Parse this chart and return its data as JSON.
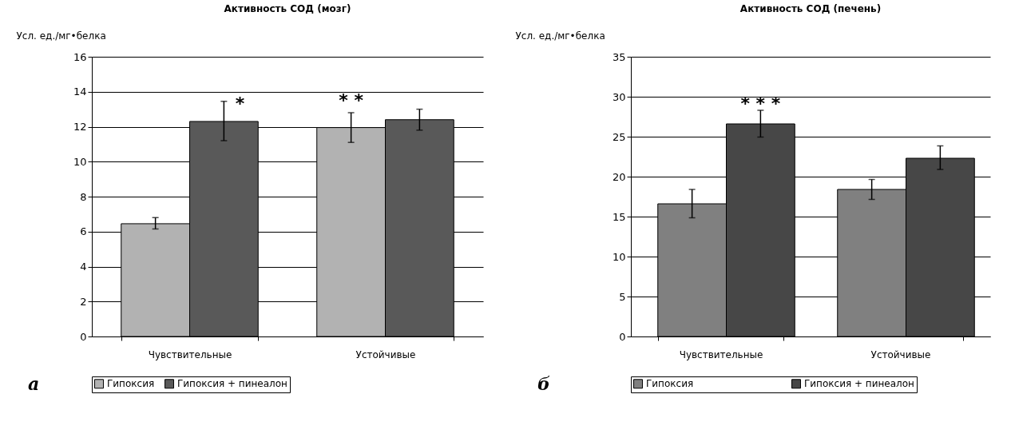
{
  "chart_data": [
    {
      "type": "bar",
      "title": "Активность СОД (мозг)",
      "ylabel": "Усл. ед./мг•белка",
      "categories": [
        "Чувствительные",
        "Устойчивые"
      ],
      "series": [
        {
          "name": "Гипоксия",
          "color": "#b2b2b2",
          "values": [
            6.45,
            11.95
          ],
          "errors": [
            [
              6.15,
              6.8
            ],
            [
              11.1,
              12.8
            ]
          ]
        },
        {
          "name": "Гипоксия + пинеалон",
          "color": "#595959",
          "values": [
            12.3,
            12.4
          ],
          "errors": [
            [
              11.2,
              13.45
            ],
            [
              11.8,
              13
            ]
          ]
        }
      ],
      "ylim": [
        0,
        16
      ],
      "yticks": [
        0,
        2,
        4,
        6,
        8,
        10,
        12,
        14,
        16
      ],
      "grid": "y",
      "legend": "bottom",
      "annotations": [
        "*",
        "* *",
        "а"
      ]
    },
    {
      "type": "bar",
      "title": "Активность СОД (печень)",
      "ylabel": "Усл. ед./мг•белка",
      "categories": [
        "Чувствительные",
        "Устойчивые"
      ],
      "series": [
        {
          "name": "Гипоксия",
          "color": "#808080",
          "values": [
            16.6,
            18.4
          ],
          "errors": [
            [
              14.85,
              18.4
            ],
            [
              17.15,
              19.65
            ]
          ]
        },
        {
          "name": "Гипоксия + пинеалон",
          "color": "#474747",
          "values": [
            26.6,
            22.3
          ],
          "errors": [
            [
              24.95,
              28.3
            ],
            [
              20.9,
              23.85
            ]
          ]
        }
      ],
      "ylim": [
        0,
        35
      ],
      "yticks": [
        0,
        5,
        10,
        15,
        20,
        25,
        30,
        35
      ],
      "grid": "y",
      "legend": "bottom",
      "annotations": [
        "* * *",
        "б"
      ]
    }
  ]
}
